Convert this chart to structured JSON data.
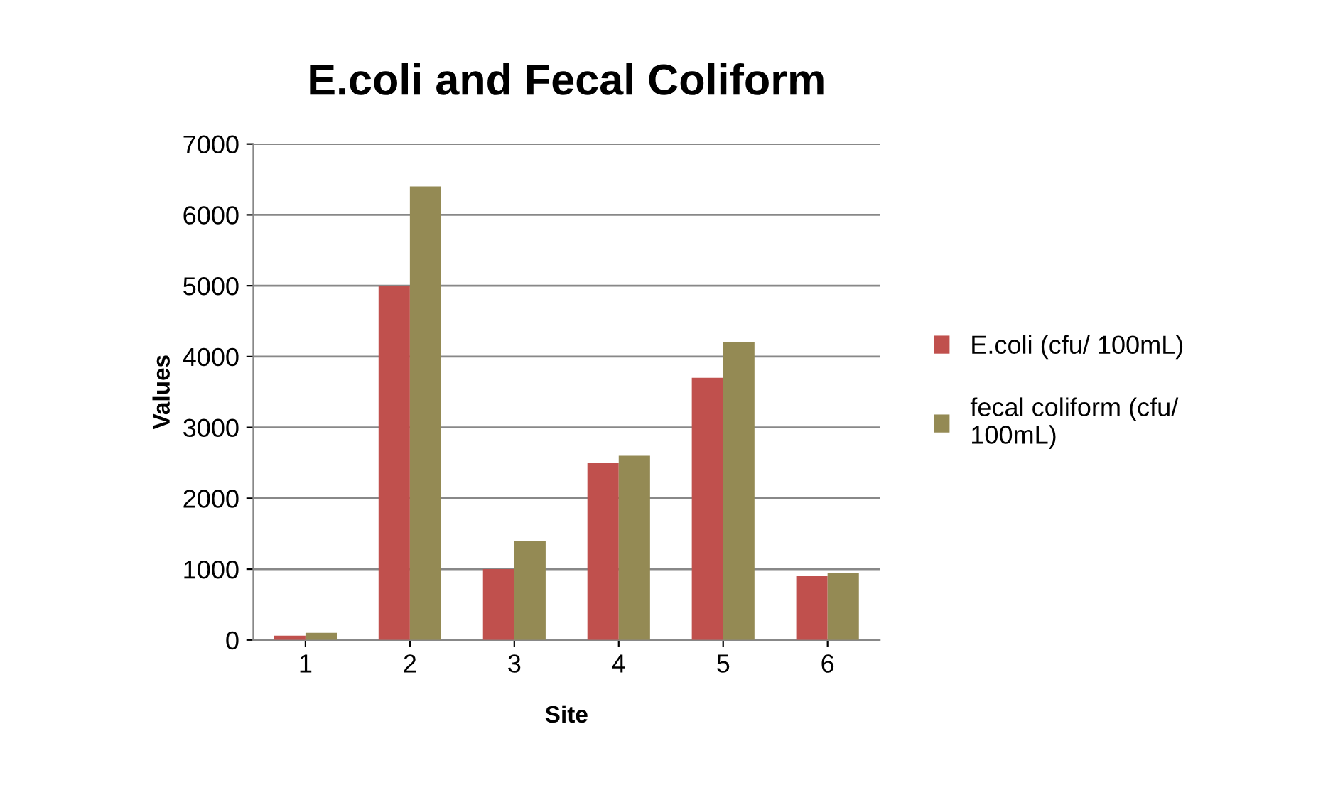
{
  "chart_data": {
    "type": "bar",
    "title": "E.coli and Fecal Coliform",
    "xlabel": "Site",
    "ylabel": "Values",
    "categories": [
      "1",
      "2",
      "3",
      "4",
      "5",
      "6"
    ],
    "series": [
      {
        "name": "E.coli (cfu/ 100mL)",
        "color": "#c0504d",
        "values": [
          60,
          5000,
          1000,
          2500,
          3700,
          900
        ]
      },
      {
        "name": "fecal coliform (cfu/ 100mL)",
        "color": "#948a54",
        "values": [
          100,
          6400,
          1400,
          2600,
          4200,
          950
        ]
      }
    ],
    "ylim": [
      0,
      7000
    ],
    "yticks": [
      0,
      1000,
      2000,
      3000,
      4000,
      5000,
      6000,
      7000
    ],
    "grid": "y",
    "legend": "right"
  }
}
